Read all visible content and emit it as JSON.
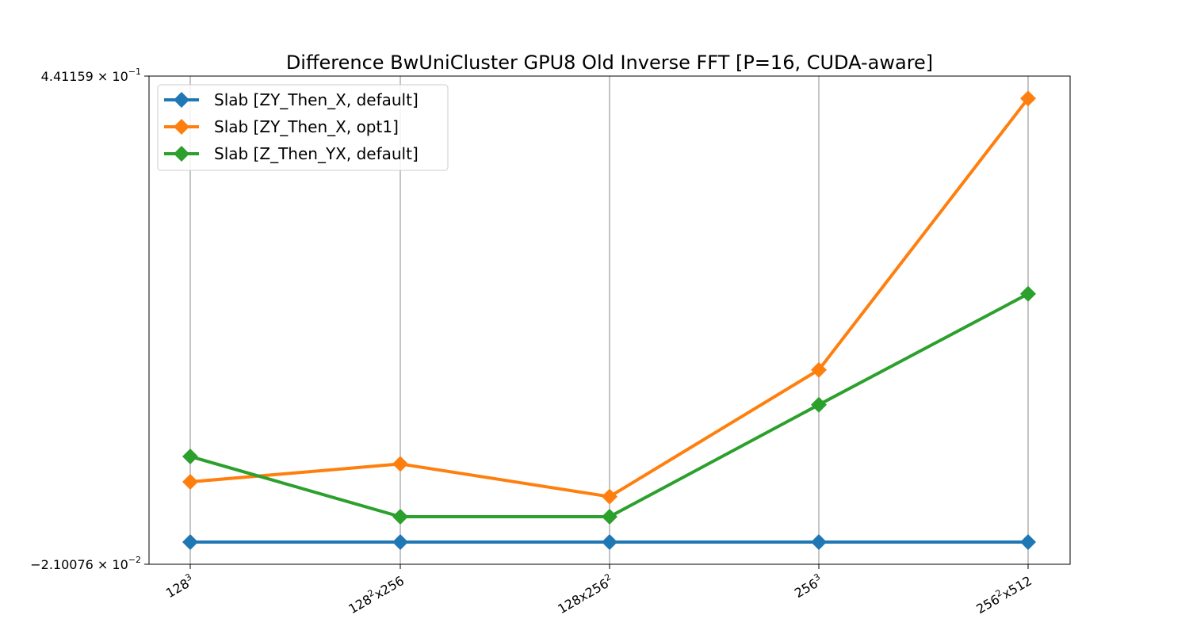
{
  "chart_data": {
    "type": "line",
    "title": "Difference BwUniCluster GPU8 Old Inverse FFT [P=16, CUDA-aware]",
    "xlabel": "",
    "ylabel": "",
    "categories": [
      {
        "base": "128",
        "sup": "3",
        "rest": ""
      },
      {
        "base": "128",
        "sup": "2",
        "rest": "x256"
      },
      {
        "base": "128x256",
        "sup": "2",
        "rest": ""
      },
      {
        "base": "256",
        "sup": "3",
        "rest": ""
      },
      {
        "base": "256",
        "sup": "2",
        "rest": "x512"
      }
    ],
    "ylim": [
      -0.0210076,
      0.441159
    ],
    "y_tick_labels": [
      {
        "mantissa": "4.41159",
        "exponent": "−1",
        "value": 0.441159
      },
      {
        "mantissa": "−2.10076",
        "exponent": "−2",
        "value": -0.0210076
      }
    ],
    "grid": "vertical",
    "legend_position": "top-left",
    "series": [
      {
        "name": "Slab [ZY_Then_X, default]",
        "color": "#1f77b4",
        "marker": "diamond",
        "values": [
          0.0,
          0.0,
          0.0,
          0.0,
          0.0
        ]
      },
      {
        "name": "Slab [ZY_Then_X, opt1]",
        "color": "#ff7f0e",
        "marker": "diamond",
        "values": [
          0.057,
          0.074,
          0.043,
          0.163,
          0.42
        ]
      },
      {
        "name": "Slab [Z_Then_YX, default]",
        "color": "#2ca02c",
        "marker": "diamond",
        "values": [
          0.081,
          0.024,
          0.024,
          0.13,
          0.235
        ]
      }
    ]
  }
}
